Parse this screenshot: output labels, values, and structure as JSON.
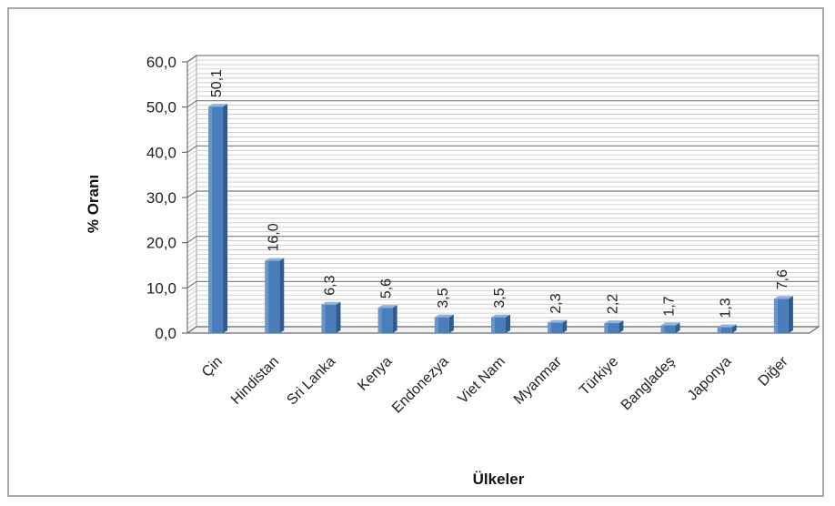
{
  "chart_data": {
    "type": "bar",
    "title": "",
    "xlabel": "Ülkeler",
    "ylabel": "% Oranı",
    "ylim": [
      0,
      60
    ],
    "ytick_step": 10,
    "ytick_labels": [
      "0,0",
      "10,0",
      "20,0",
      "30,0",
      "40,0",
      "50,0",
      "60,0"
    ],
    "categories": [
      "Çin",
      "Hindistan",
      "Sri Lanka",
      "Kenya",
      "Endonezya",
      "Viet Nam",
      "Myanmar",
      "Türkiye",
      "Bangladeş",
      "Japonya",
      "Diğer"
    ],
    "values": [
      50.1,
      16.0,
      6.3,
      5.6,
      3.5,
      3.5,
      2.3,
      2.2,
      1.7,
      1.3,
      7.6
    ],
    "value_labels": [
      "50,1",
      "16,0",
      "6,3",
      "5,6",
      "3,5",
      "3,5",
      "2,3",
      "2,2",
      "1,7",
      "1,3",
      "7,6"
    ],
    "grid": true,
    "legend": "none",
    "bar_color": "#4a7ebb",
    "bar_dark_color": "#2f5b8f",
    "bar_light_color": "#8fb3e0"
  }
}
